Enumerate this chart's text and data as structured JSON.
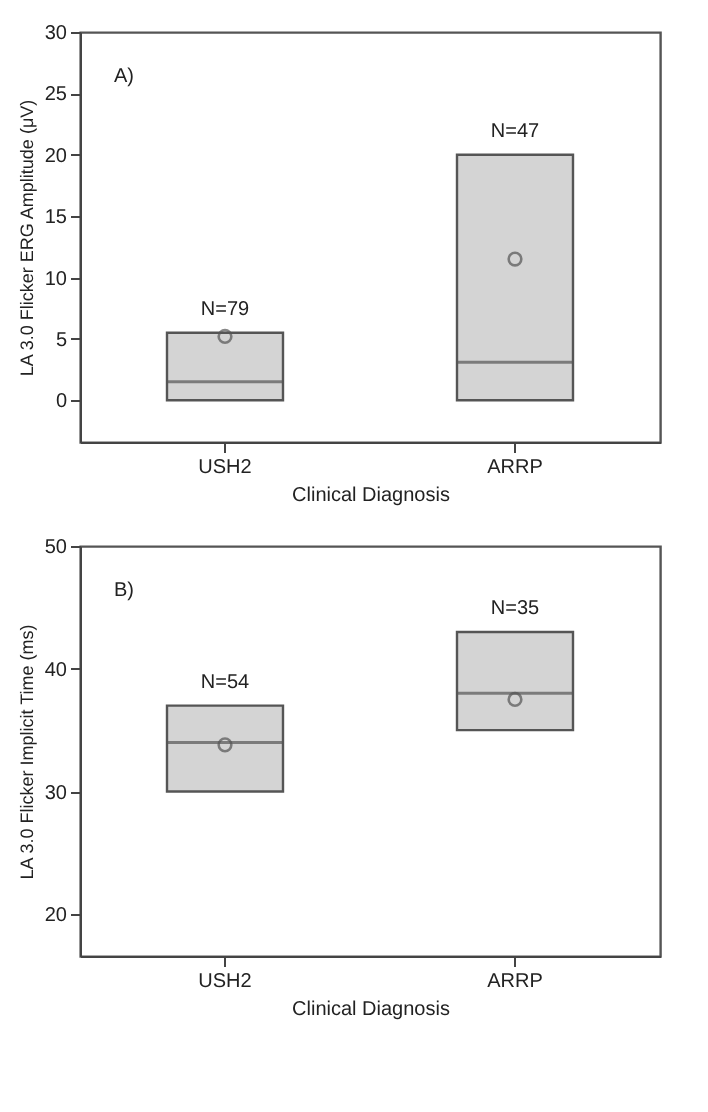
{
  "chart_data": [
    {
      "type": "box",
      "categories": [
        "USH2",
        "ARRP"
      ],
      "xlabel": "Clinical Diagnosis",
      "ylabel": "LA 3.0 Flicker ERG Amplitude (μV)",
      "ylim": [
        -3.4,
        30
      ],
      "yticks": [
        0,
        5,
        10,
        15,
        20,
        25,
        30
      ],
      "grid": false,
      "boxes": [
        {
          "low": 0,
          "q1": 0,
          "median": 1.5,
          "q3": 5.5,
          "high": 5.5,
          "mean": 5.2
        },
        {
          "low": 0,
          "q1": 0,
          "median": 3.1,
          "q3": 20,
          "high": 20,
          "mean": 11.5
        }
      ],
      "annotations": [
        "A)",
        "N=79",
        "N=47"
      ]
    },
    {
      "type": "box",
      "categories": [
        "USH2",
        "ARRP"
      ],
      "xlabel": "Clinical Diagnosis",
      "ylabel": "LA 3.0 Flicker Implicit Time (ms)",
      "ylim": [
        16.6,
        50
      ],
      "yticks": [
        20,
        30,
        40,
        50
      ],
      "grid": false,
      "boxes": [
        {
          "low": 30,
          "q1": 30,
          "median": 34,
          "q3": 37,
          "high": 37,
          "mean": 33.8
        },
        {
          "low": 35,
          "q1": 35,
          "median": 38,
          "q3": 43,
          "high": 43,
          "mean": 37.5
        }
      ],
      "annotations": [
        "B)",
        "N=54",
        "N=35"
      ]
    }
  ]
}
